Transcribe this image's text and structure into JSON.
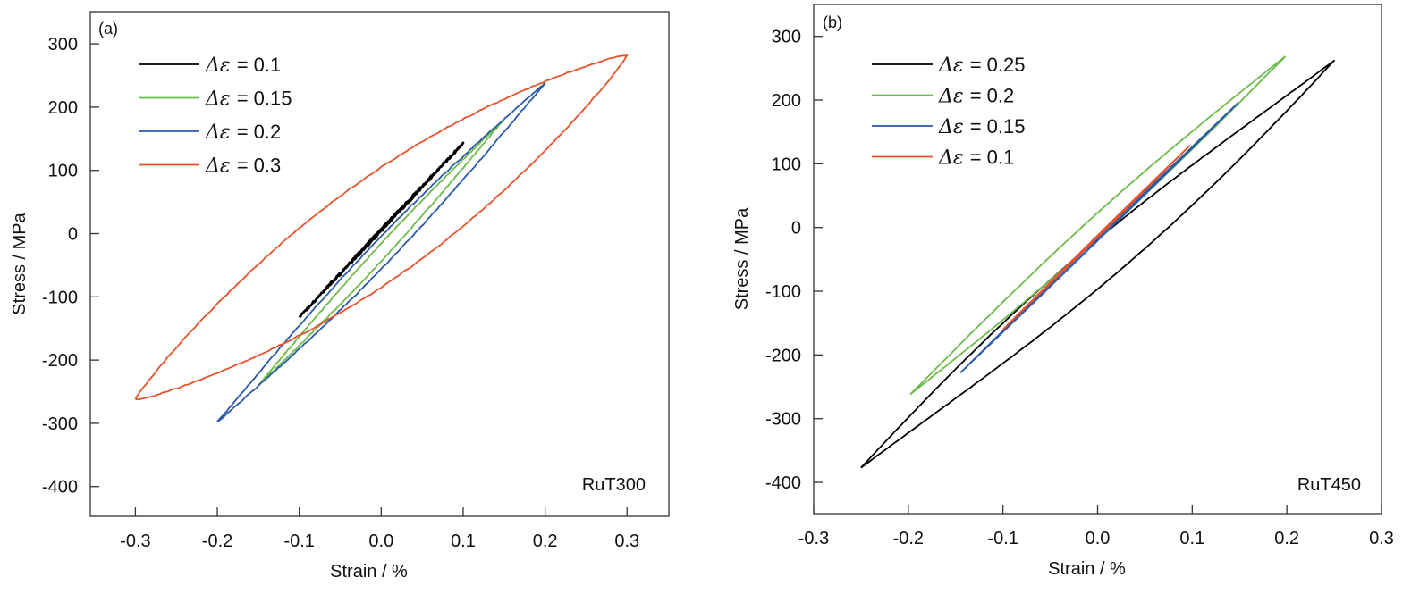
{
  "chart_data": [
    {
      "type": "line",
      "panel_label": "(a)",
      "annotation": "RuT300",
      "xlabel": "Strain / %",
      "ylabel": "Stress / MPa",
      "xlim": [
        -0.355,
        0.351
      ],
      "ylim": [
        -447,
        351
      ],
      "xticks": [
        -0.3,
        -0.2,
        -0.1,
        0.0,
        0.1,
        0.2,
        0.3
      ],
      "xtick_labels": [
        "-0.3",
        "-0.2",
        "-0.1",
        "0.0",
        "0.1",
        "0.2",
        "0.3"
      ],
      "yticks": [
        300,
        200,
        100,
        0,
        -100,
        -200,
        -300,
        -400
      ],
      "ytick_labels": [
        "300",
        "200",
        "100",
        "0",
        "-100",
        "-200",
        "-300",
        "-400"
      ],
      "grid": false,
      "legend_position": "top-left",
      "legend_prefix": "Δε",
      "series": [
        {
          "name": "Δε = 0.1",
          "value_label": "= 0.1",
          "color": "#000000",
          "loop": {
            "min": [
              -0.1,
              -132
            ],
            "max": [
              0.1,
              143
            ],
            "width": 3
          }
        },
        {
          "name": "Δε = 0.15",
          "value_label": "= 0.15",
          "color": "#6dbb4b",
          "loop": {
            "min": [
              -0.15,
              -240
            ],
            "max": [
              0.148,
              178
            ],
            "width": 28
          }
        },
        {
          "name": "Δε = 0.2",
          "value_label": "= 0.2",
          "color": "#2a5aa8",
          "loop": {
            "min": [
              -0.2,
              -298
            ],
            "max": [
              0.2,
              238
            ],
            "width": 52
          }
        },
        {
          "name": "Δε = 0.3",
          "value_label": "= 0.3",
          "color": "#e8532b",
          "loop": {
            "min": [
              -0.3,
              -262
            ],
            "max": [
              0.3,
              282
            ],
            "width": 190
          }
        }
      ]
    },
    {
      "type": "line",
      "panel_label": "(b)",
      "annotation": "RuT450",
      "xlabel": "Strain / %",
      "ylabel": "Stress / MPa",
      "xlim": [
        -0.3,
        0.3
      ],
      "ylim": [
        -449,
        350
      ],
      "xticks": [
        -0.3,
        -0.2,
        -0.1,
        0.0,
        0.1,
        0.2,
        0.3
      ],
      "xtick_labels": [
        "-0.3",
        "-0.2",
        "-0.1",
        "0.0",
        "0.1",
        "0.2",
        "0.3"
      ],
      "yticks": [
        300,
        200,
        100,
        0,
        -100,
        -200,
        -300,
        -400
      ],
      "ytick_labels": [
        "300",
        "200",
        "100",
        "0",
        "-100",
        "-200",
        "-300",
        "-400"
      ],
      "grid": false,
      "legend_position": "top-left",
      "legend_prefix": "Δε",
      "series": [
        {
          "name": "Δε = 0.25",
          "value_label": "= 0.25",
          "color": "#000000",
          "loop": {
            "min": [
              -0.25,
              -377
            ],
            "max": [
              0.25,
              262
            ],
            "width": -78
          }
        },
        {
          "name": "Δε = 0.2",
          "value_label": "= 0.2",
          "color": "#6dbb4b",
          "loop": {
            "min": [
              -0.198,
              -262
            ],
            "max": [
              0.198,
              268
            ],
            "width": 40
          }
        },
        {
          "name": "Δε = 0.15",
          "value_label": "= 0.15",
          "color": "#2a5aa8",
          "loop": {
            "min": [
              -0.145,
              -228
            ],
            "max": [
              0.148,
              195
            ],
            "width": 4
          }
        },
        {
          "name": "Δε = 0.1",
          "value_label": "= 0.1",
          "color": "#e8532b",
          "loop": {
            "min": [
              -0.1,
              -160
            ],
            "max": [
              0.097,
              128
            ],
            "width": 3
          }
        }
      ]
    }
  ]
}
